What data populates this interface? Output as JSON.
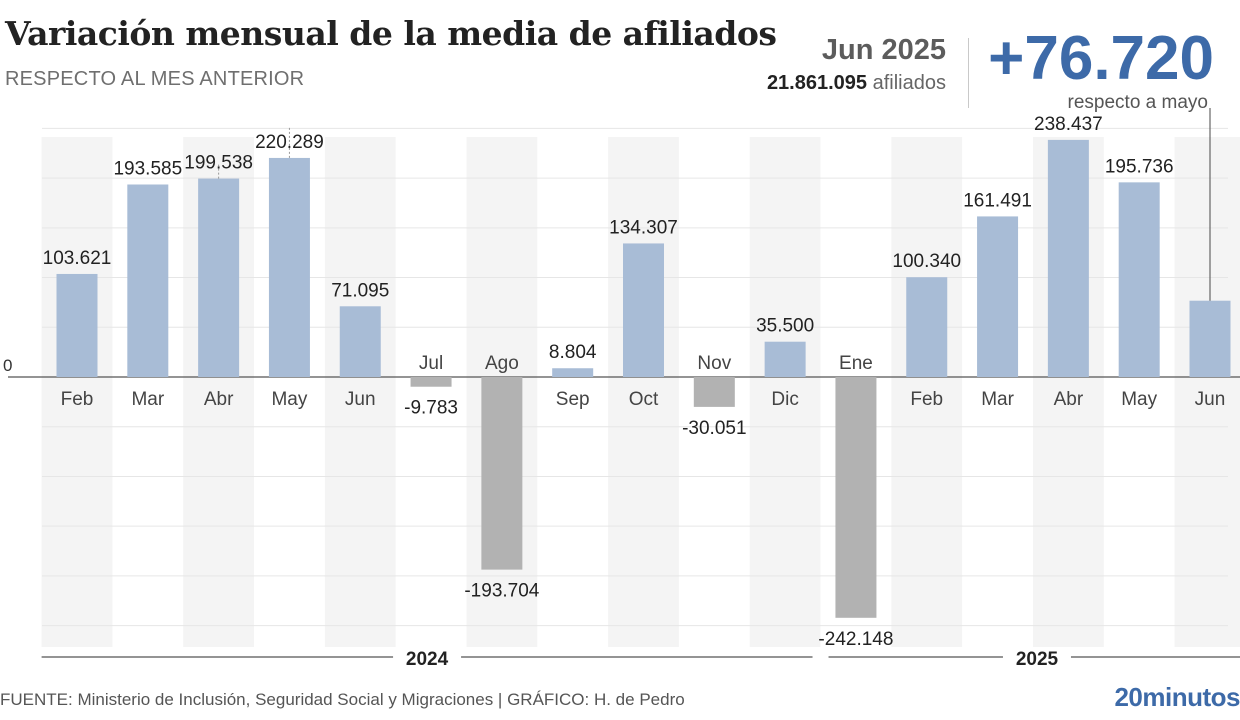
{
  "header": {
    "title": "Variación mensual de la media de afiliados",
    "subtitle": "RESPECTO AL MES ANTERIOR"
  },
  "highlight": {
    "month": "Jun 2025",
    "affiliates_value": "21.861.095",
    "affiliates_label": "afiliados",
    "change": "+76.720",
    "change_note": "respecto a mayo"
  },
  "footer": {
    "source": "FUENTE: Ministerio de Inclusión, Seguridad Social y Migraciones  |  GRÁFICO: H. de Pedro",
    "brand": "20minutos"
  },
  "colors": {
    "positive": "#a8bcd6",
    "negative": "#b2b2b2",
    "accent": "#3d6aa8",
    "column_band": "#f4f4f4",
    "grid": "#e6e6e6"
  },
  "chart_data": {
    "type": "bar",
    "title": "Variación mensual de la media de afiliados",
    "subtitle": "RESPECTO AL MES ANTERIOR",
    "xlabel": "",
    "ylabel": "",
    "ylim": [
      -260000,
      260000
    ],
    "zero_label": "0",
    "grid": true,
    "categories": [
      "Feb",
      "Mar",
      "Abr",
      "May",
      "Jun",
      "Jul",
      "Ago",
      "Sep",
      "Oct",
      "Nov",
      "Dic",
      "Ene",
      "Feb",
      "Mar",
      "Abr",
      "May",
      "Jun"
    ],
    "values": [
      103621,
      193585,
      199538,
      220289,
      71095,
      -9783,
      -193704,
      8804,
      134307,
      -30051,
      35500,
      -242148,
      100340,
      161491,
      238437,
      195736,
      76720
    ],
    "value_labels": [
      "103.621",
      "193.585",
      "199.538",
      "220.289",
      "71.095",
      "-9.783",
      "-193.704",
      "8.804",
      "134.307",
      "-30.051",
      "35.500",
      "-242.148",
      "100.340",
      "161.491",
      "238.437",
      "195.736",
      ""
    ],
    "groups": [
      {
        "label": "2024",
        "from": 0,
        "to": 10
      },
      {
        "label": "2025",
        "from": 11,
        "to": 16
      }
    ]
  }
}
